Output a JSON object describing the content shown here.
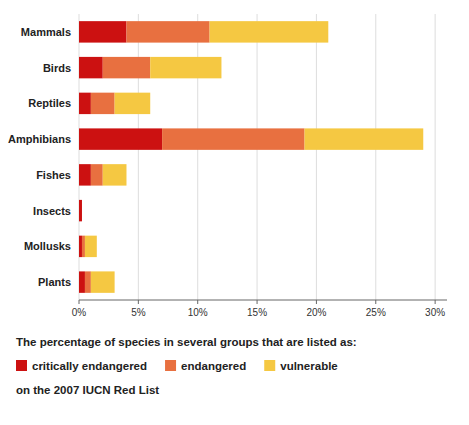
{
  "chart_data": {
    "type": "bar",
    "orientation": "horizontal",
    "stacked": true,
    "title": "The percentage of species in several groups that are listed as:",
    "subtitle": "on the 2007 IUCN Red List",
    "categories": [
      "Mammals",
      "Birds",
      "Reptiles",
      "Amphibians",
      "Fishes",
      "Insects",
      "Mollusks",
      "Plants"
    ],
    "series": [
      {
        "name": "critically endangered",
        "color": "#cc1111",
        "values": [
          4,
          2,
          1,
          7,
          1,
          0.25,
          0.25,
          0.5
        ]
      },
      {
        "name": "endangered",
        "color": "#e87040",
        "values": [
          7,
          4,
          2,
          12,
          1,
          0,
          0.25,
          0.5
        ]
      },
      {
        "name": "vulnerable",
        "color": "#f5c842",
        "values": [
          10,
          6,
          3,
          10,
          2,
          0,
          1,
          2
        ]
      }
    ],
    "xlim": [
      0,
      31
    ],
    "xticks": [
      {
        "value": 0,
        "label": "0%"
      },
      {
        "value": 5,
        "label": "5%"
      },
      {
        "value": 10,
        "label": "10%"
      },
      {
        "value": 15,
        "label": "15%"
      },
      {
        "value": 20,
        "label": "20%"
      },
      {
        "value": 25,
        "label": "25%"
      },
      {
        "value": 30,
        "label": "30%"
      }
    ],
    "grid": true,
    "legend": "bottom"
  }
}
